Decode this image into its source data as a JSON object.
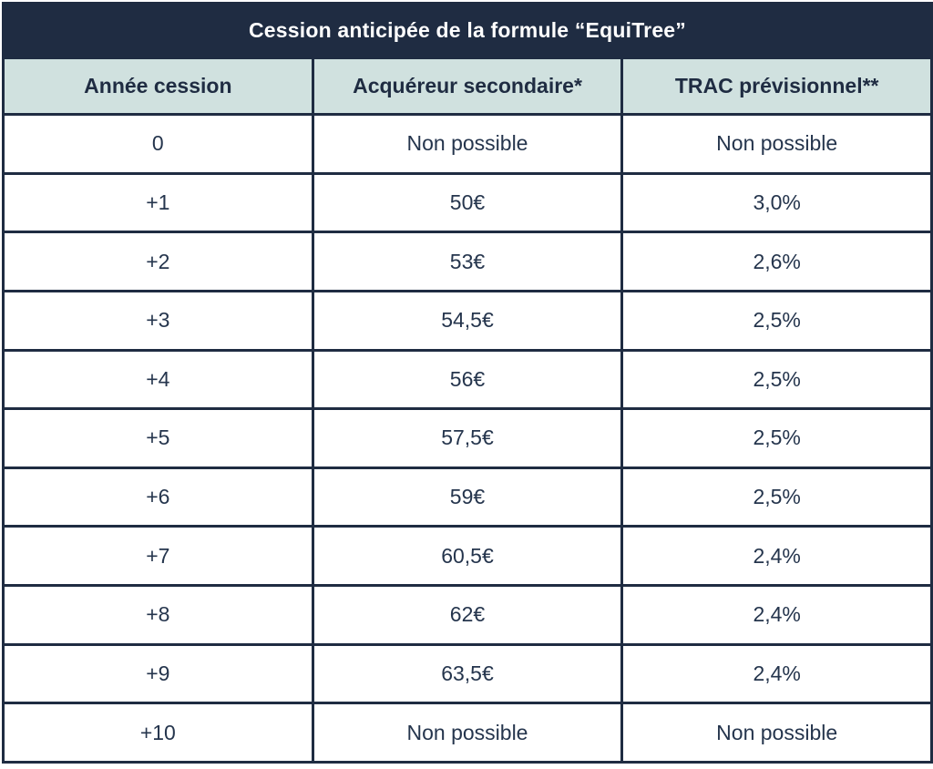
{
  "colors": {
    "navy": "#1f2c42",
    "header_teal": "#d0e1df",
    "title_text": "#ffffff",
    "cell_text": "#25354d",
    "cell_bg": "#ffffff"
  },
  "table": {
    "title": "Cession anticipée de la formule “EquiTree”",
    "columns": [
      "Année cession",
      "Acquéreur secondaire*",
      "TRAC prévisionnel**"
    ],
    "rows": [
      [
        "0",
        "Non possible",
        "Non possible"
      ],
      [
        "+1",
        "50€",
        "3,0%"
      ],
      [
        "+2",
        "53€",
        "2,6%"
      ],
      [
        "+3",
        "54,5€",
        "2,5%"
      ],
      [
        "+4",
        "56€",
        "2,5%"
      ],
      [
        "+5",
        "57,5€",
        "2,5%"
      ],
      [
        "+6",
        "59€",
        "2,5%"
      ],
      [
        "+7",
        "60,5€",
        "2,4%"
      ],
      [
        "+8",
        "62€",
        "2,4%"
      ],
      [
        "+9",
        "63,5€",
        "2,4%"
      ],
      [
        "+10",
        "Non possible",
        "Non possible"
      ]
    ]
  },
  "chart_data": {
    "type": "table",
    "title": "Cession anticipée de la formule “EquiTree”",
    "columns": [
      "Année cession",
      "Acquéreur secondaire*",
      "TRAC prévisionnel**"
    ],
    "rows": [
      [
        "0",
        "Non possible",
        "Non possible"
      ],
      [
        "+1",
        "50€",
        "3,0%"
      ],
      [
        "+2",
        "53€",
        "2,6%"
      ],
      [
        "+3",
        "54,5€",
        "2,5%"
      ],
      [
        "+4",
        "56€",
        "2,5%"
      ],
      [
        "+5",
        "57,5€",
        "2,5%"
      ],
      [
        "+6",
        "59€",
        "2,5%"
      ],
      [
        "+7",
        "60,5€",
        "2,4%"
      ],
      [
        "+8",
        "62€",
        "2,4%"
      ],
      [
        "+9",
        "63,5€",
        "2,4%"
      ],
      [
        "+10",
        "Non possible",
        "Non possible"
      ]
    ],
    "acquereur_secondaire_eur": [
      null,
      50,
      53,
      54.5,
      56,
      57.5,
      59,
      60.5,
      62,
      63.5,
      null
    ],
    "trac_previsionnel_pct": [
      null,
      3.0,
      2.6,
      2.5,
      2.5,
      2.5,
      2.5,
      2.4,
      2.4,
      2.4,
      null
    ],
    "annee_cession": [
      0,
      1,
      2,
      3,
      4,
      5,
      6,
      7,
      8,
      9,
      10
    ]
  }
}
